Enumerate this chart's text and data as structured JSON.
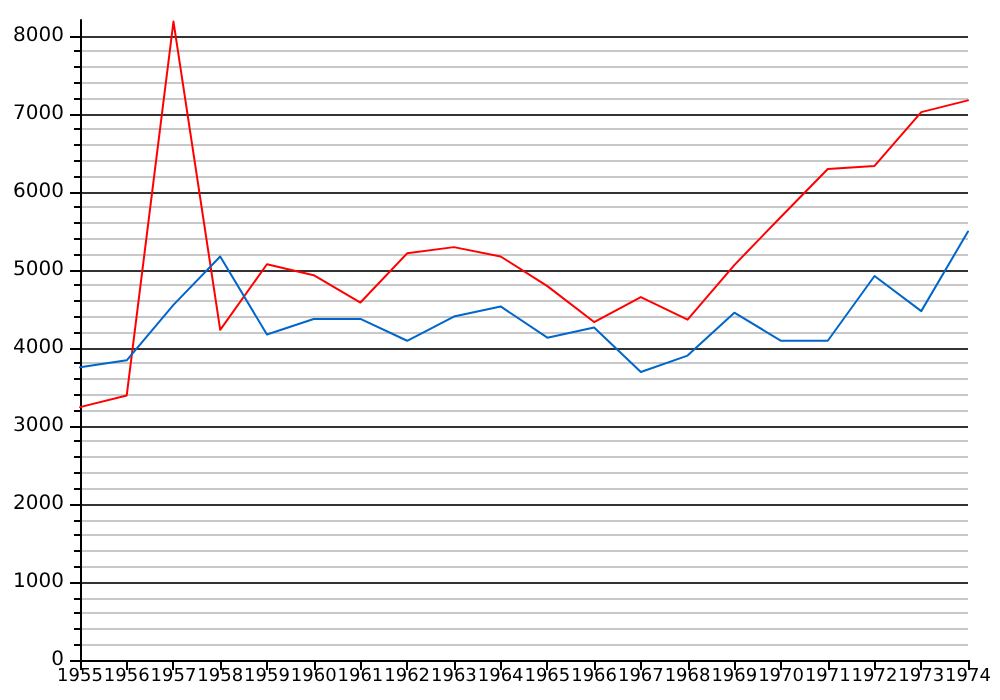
{
  "chart_data": {
    "type": "line",
    "categories": [
      "1955",
      "1956",
      "1957",
      "1958",
      "1959",
      "1960",
      "1961",
      "1962",
      "1963",
      "1964",
      "1965",
      "1966",
      "1967",
      "1968",
      "1969",
      "1970",
      "1971",
      "1972",
      "1973",
      "1974"
    ],
    "series": [
      {
        "color": "#ff0000",
        "values": [
          3240,
          3390,
          8180,
          4230,
          5070,
          4930,
          4580,
          5210,
          5290,
          5170,
          4790,
          4330,
          4650,
          4360,
          5060,
          5680,
          6290,
          6330,
          7020,
          7170
        ]
      },
      {
        "color": "#0066cc",
        "values": [
          3750,
          3840,
          4550,
          5170,
          4170,
          4370,
          4370,
          4090,
          4400,
          4530,
          4130,
          4260,
          3690,
          3900,
          4450,
          4090,
          4090,
          4920,
          4470,
          5490
        ]
      }
    ],
    "ylim": [
      0,
      8200
    ],
    "yticks": [
      0,
      1000,
      2000,
      3000,
      4000,
      5000,
      6000,
      7000,
      8000
    ],
    "grid": "y",
    "marker": "none",
    "line_style": "solid"
  }
}
